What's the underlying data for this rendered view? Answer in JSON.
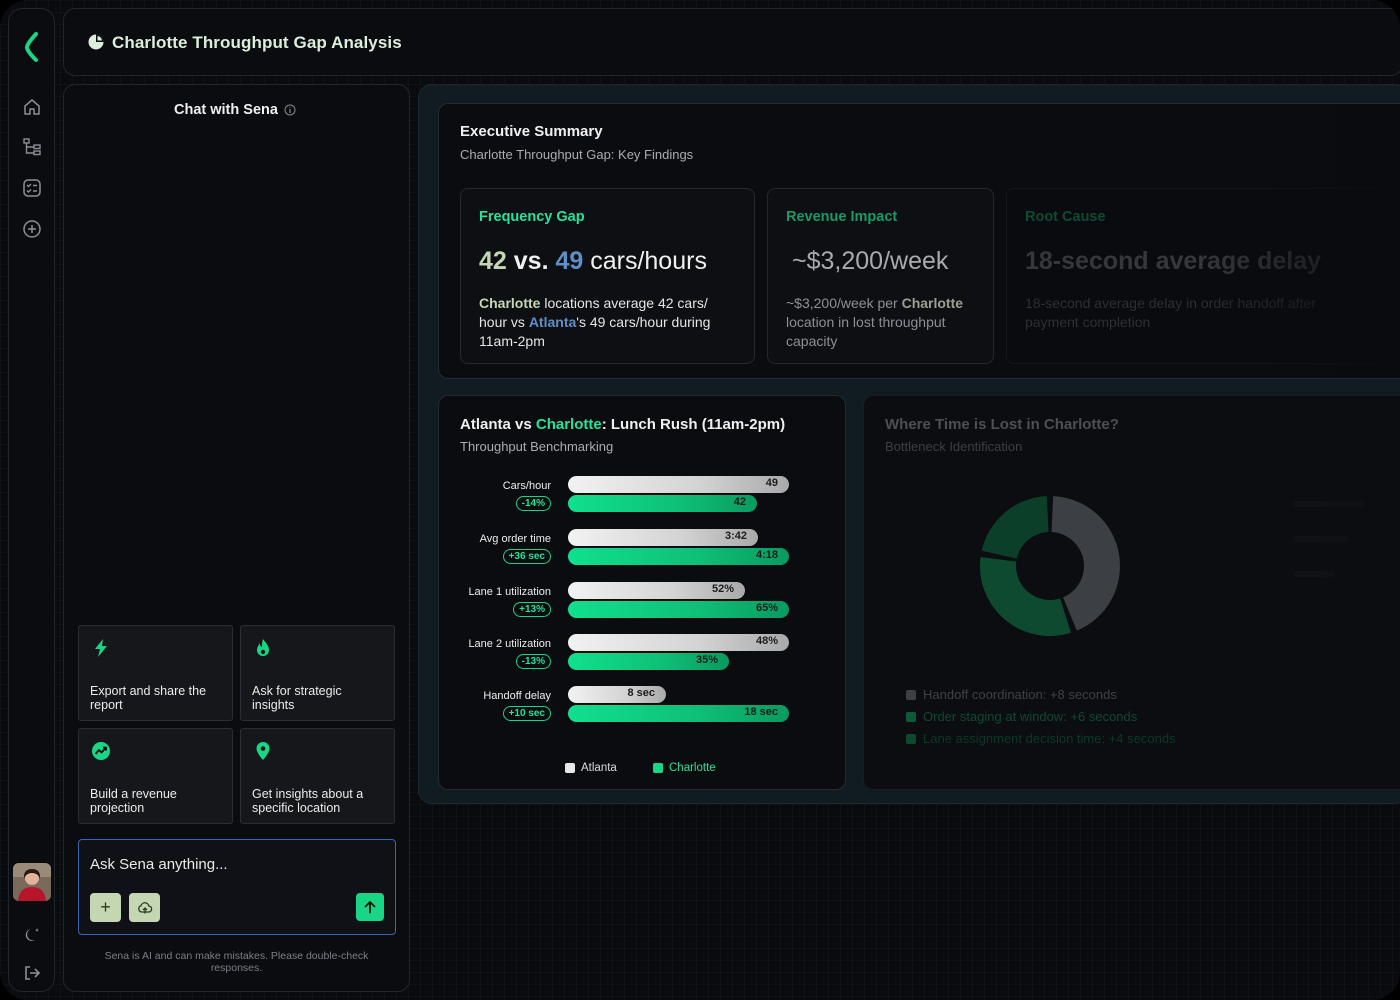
{
  "header": {
    "title": "Charlotte Throughput Gap Analysis"
  },
  "chat": {
    "title": "Chat with Sena",
    "cards": [
      {
        "icon": "lightning-icon",
        "label": "Export and share the report"
      },
      {
        "icon": "flame-icon",
        "label": "Ask for strategic insights"
      },
      {
        "icon": "trend-chart-icon",
        "label": "Build a revenue projection"
      },
      {
        "icon": "location-pin-icon",
        "label": "Get insights about a specific location"
      }
    ],
    "input_placeholder": "Ask Sena anything...",
    "disclaimer": "Sena is AI and can make mistakes. Please double-check responses."
  },
  "executive": {
    "title": "Executive Summary",
    "subtitle": "Charlotte Throughput Gap: Key Findings",
    "kpis": [
      {
        "title": "Frequency Gap",
        "value_a": "42",
        "value_vs": " vs. ",
        "value_b": "49",
        "value_unit": " cars/hours",
        "desc_a": "Charlotte",
        "desc_b": " locations average 42 cars/ hour vs ",
        "desc_c": "Atlanta",
        "desc_d": "'s 49 cars/hour during 11am-2pm"
      },
      {
        "title": "Revenue Impact",
        "value": "~$3,200/week",
        "desc_a": "~$3,200/week per ",
        "desc_b": "Charlotte",
        "desc_c": " location in lost throughput capacity"
      },
      {
        "title": "Root Cause",
        "value": "18-second average delay",
        "desc": "18-second average delay in order handoff after payment completion"
      }
    ]
  },
  "benchmark": {
    "title_a": "Atlanta",
    "title_b": " vs ",
    "title_c": "Charlotte",
    "title_d": ": Lunch Rush (11am-2pm)",
    "subtitle": "Throughput Benchmarking",
    "legend": {
      "atlanta": "Atlanta",
      "charlotte": "Charlotte"
    }
  },
  "chart_data": {
    "type": "bar",
    "categories": [
      "Cars/hour",
      "Avg order time",
      "Lane 1 utilization",
      "Lane 2 utilization",
      "Handoff delay"
    ],
    "series": [
      {
        "name": "Atlanta",
        "labels": [
          "49",
          "3:42",
          "52%",
          "48%",
          "8 sec"
        ],
        "values": [
          49,
          3.7,
          52,
          48,
          8
        ]
      },
      {
        "name": "Charlotte",
        "labels": [
          "42",
          "4:18",
          "65%",
          "35%",
          "18 sec"
        ],
        "values": [
          42,
          4.3,
          65,
          35,
          18
        ]
      }
    ],
    "deltas": [
      "-14%",
      "+36 sec",
      "+13%",
      "-13%",
      "+10 sec"
    ]
  },
  "where": {
    "title": "Where Time is Lost in Charlotte?",
    "subtitle": "Bottleneck Identification",
    "legend": [
      {
        "label": "Handoff coordination: +8 seconds",
        "value": 8,
        "color": "#3c3f44"
      },
      {
        "label": "Order staging at window: +6 seconds",
        "value": 6,
        "color": "#0e4a30"
      },
      {
        "label": "Lane assignment decision time: +4 seconds",
        "value": 4,
        "color": "#0b3a26"
      }
    ]
  },
  "colors": {
    "accent": "#18d685",
    "atlanta_blue": "#5d8fc8",
    "kpi_green": "#25e39a"
  }
}
